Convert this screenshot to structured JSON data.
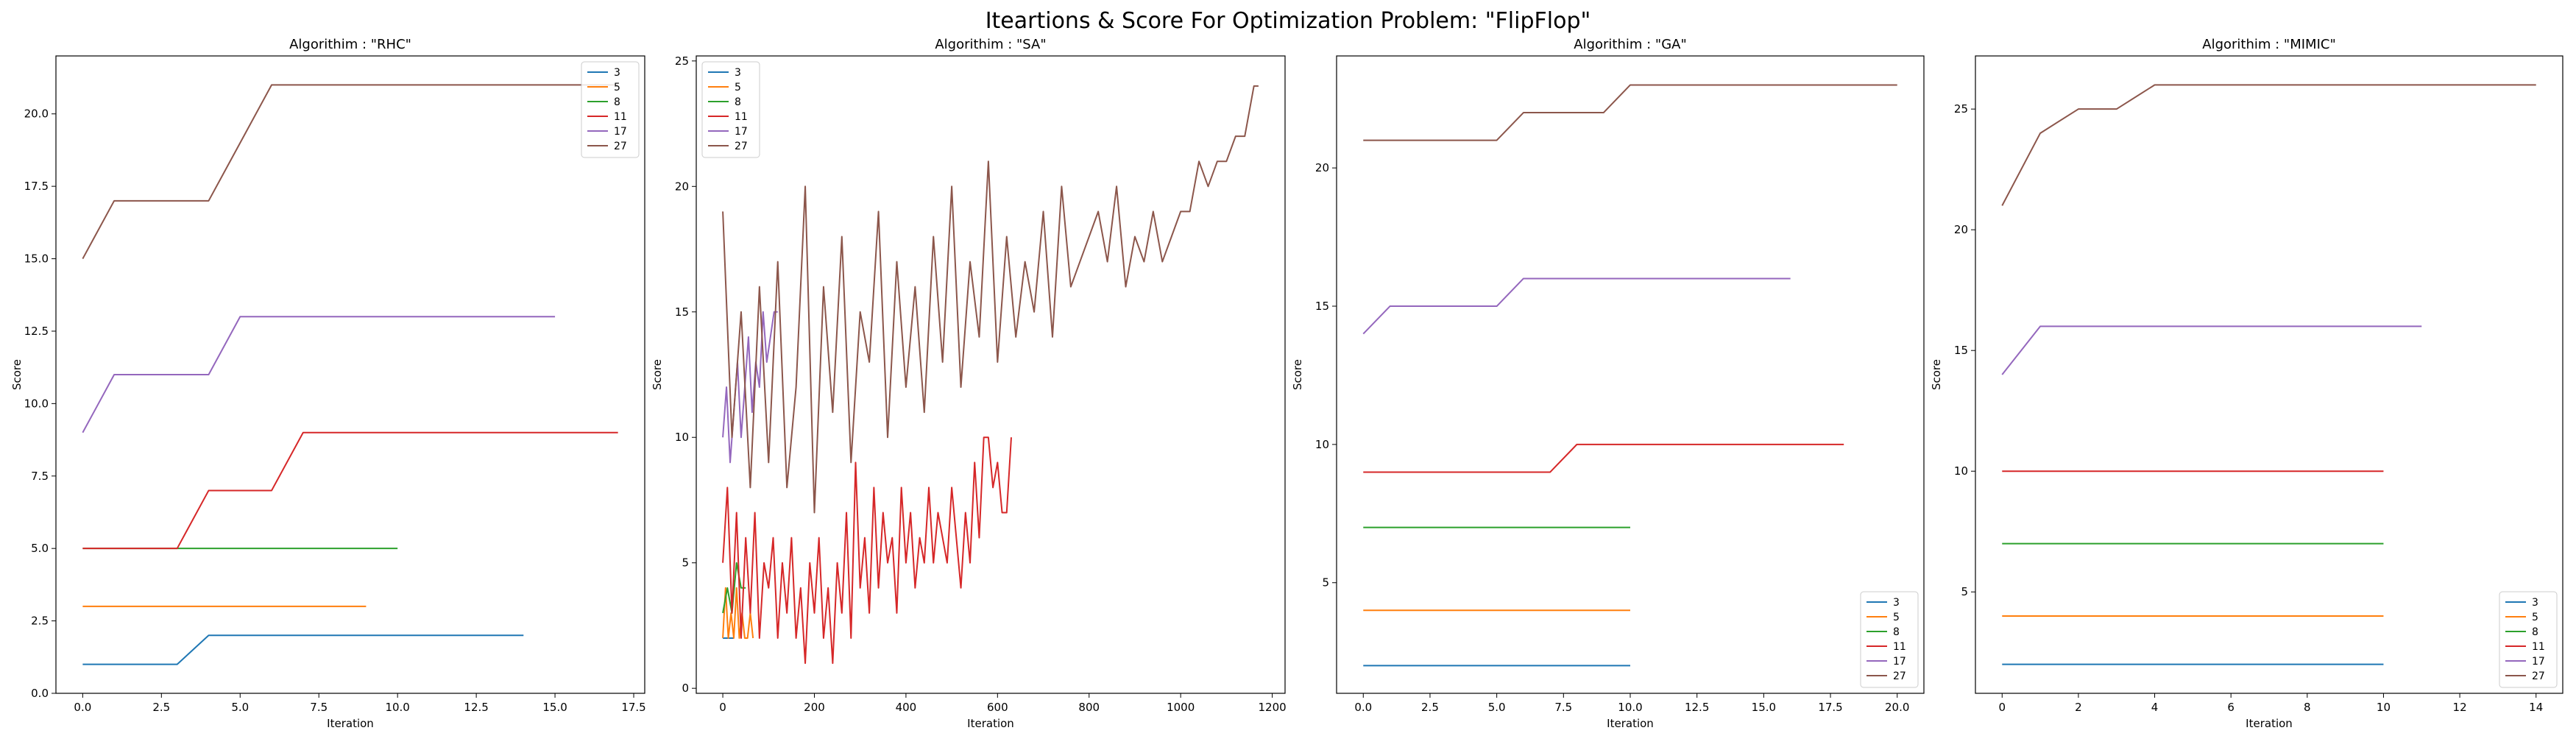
{
  "figure": {
    "title": "Iteartions & Score For Optimization Problem: \"FlipFlop\""
  },
  "colors": {
    "3": "#1f77b4",
    "5": "#ff7f0e",
    "8": "#2ca02c",
    "11": "#d62728",
    "17": "#9467bd",
    "27": "#8c564b"
  },
  "chart_data": [
    {
      "type": "line",
      "title": "Algorithim : \"RHC\"",
      "xlabel": "Iteration",
      "ylabel": "Score",
      "xlim": [
        -0.85,
        17.85
      ],
      "ylim": [
        0,
        22
      ],
      "xticks": [
        0.0,
        2.5,
        5.0,
        7.5,
        10.0,
        12.5,
        15.0,
        17.5
      ],
      "xtick_labels": [
        "0.0",
        "2.5",
        "5.0",
        "7.5",
        "10.0",
        "12.5",
        "15.0",
        "17.5"
      ],
      "yticks": [
        0.0,
        2.5,
        5.0,
        7.5,
        10.0,
        12.5,
        15.0,
        17.5,
        20.0
      ],
      "ytick_labels": [
        "0.0",
        "2.5",
        "5.0",
        "7.5",
        "10.0",
        "12.5",
        "15.0",
        "17.5",
        "20.0"
      ],
      "legend": "top-right",
      "series": [
        {
          "name": "3",
          "color": "#1f77b4",
          "x": [
            0,
            1,
            2,
            3,
            4,
            5,
            6,
            7,
            8,
            9,
            10,
            11,
            12,
            13,
            14
          ],
          "y": [
            1,
            1,
            1,
            1,
            2,
            2,
            2,
            2,
            2,
            2,
            2,
            2,
            2,
            2,
            2
          ]
        },
        {
          "name": "5",
          "color": "#ff7f0e",
          "x": [
            0,
            1,
            2,
            3,
            4,
            5,
            6,
            7,
            8,
            9
          ],
          "y": [
            3,
            3,
            3,
            3,
            3,
            3,
            3,
            3,
            3,
            3
          ]
        },
        {
          "name": "8",
          "color": "#2ca02c",
          "x": [
            0,
            1,
            2,
            3,
            4,
            5,
            6,
            7,
            8,
            9,
            10
          ],
          "y": [
            5,
            5,
            5,
            5,
            5,
            5,
            5,
            5,
            5,
            5,
            5
          ]
        },
        {
          "name": "11",
          "color": "#d62728",
          "x": [
            0,
            1,
            2,
            3,
            4,
            5,
            6,
            7,
            8,
            9,
            10,
            11,
            12,
            13,
            14,
            15,
            16,
            17
          ],
          "y": [
            5,
            5,
            5,
            5,
            7,
            7,
            7,
            9,
            9,
            9,
            9,
            9,
            9,
            9,
            9,
            9,
            9,
            9
          ]
        },
        {
          "name": "17",
          "color": "#9467bd",
          "x": [
            0,
            1,
            2,
            3,
            4,
            5,
            6,
            7,
            8,
            9,
            10,
            11,
            12,
            13,
            14,
            15
          ],
          "y": [
            9,
            11,
            11,
            11,
            11,
            13,
            13,
            13,
            13,
            13,
            13,
            13,
            13,
            13,
            13,
            13
          ]
        },
        {
          "name": "27",
          "color": "#8c564b",
          "x": [
            0,
            1,
            2,
            3,
            4,
            5,
            6,
            7,
            8,
            9,
            10,
            11,
            12,
            13,
            14,
            15,
            16,
            17
          ],
          "y": [
            15,
            17,
            17,
            17,
            17,
            19,
            21,
            21,
            21,
            21,
            21,
            21,
            21,
            21,
            21,
            21,
            21,
            21
          ]
        }
      ]
    },
    {
      "type": "line",
      "title": "Algorithim : \"SA\"",
      "xlabel": "Iteration",
      "ylabel": "Score",
      "xlim": [
        -58,
        1228
      ],
      "ylim": [
        -0.2,
        25.2
      ],
      "xticks": [
        0,
        200,
        400,
        600,
        800,
        1000,
        1200
      ],
      "xtick_labels": [
        "0",
        "200",
        "400",
        "600",
        "800",
        "1000",
        "1200"
      ],
      "yticks": [
        0,
        5,
        10,
        15,
        20,
        25
      ],
      "ytick_labels": [
        "0",
        "5",
        "10",
        "15",
        "20",
        "25"
      ],
      "legend": "top-left",
      "series": [
        {
          "name": "3",
          "color": "#1f77b4",
          "x": [
            0,
            4,
            8,
            12,
            16,
            20,
            24
          ],
          "y": [
            2,
            2,
            2,
            2,
            2,
            2,
            2
          ]
        },
        {
          "name": "5",
          "color": "#ff7f0e",
          "x": [
            0,
            6,
            12,
            18,
            24,
            30,
            36,
            42,
            48,
            54,
            60,
            66
          ],
          "y": [
            2,
            4,
            2,
            3,
            2,
            4,
            2,
            3,
            2,
            2,
            3,
            2
          ]
        },
        {
          "name": "8",
          "color": "#2ca02c",
          "x": [
            0,
            10,
            20,
            30,
            40,
            50
          ],
          "y": [
            3,
            4,
            3,
            5,
            4,
            4
          ]
        },
        {
          "name": "11",
          "color": "#d62728",
          "x": [
            0,
            10,
            20,
            30,
            40,
            50,
            60,
            70,
            80,
            90,
            100,
            110,
            120,
            130,
            140,
            150,
            160,
            170,
            180,
            190,
            200,
            210,
            220,
            230,
            240,
            250,
            260,
            270,
            280,
            290,
            300,
            310,
            320,
            330,
            340,
            350,
            360,
            370,
            380,
            390,
            400,
            410,
            420,
            430,
            440,
            450,
            460,
            470,
            480,
            490,
            500,
            510,
            520,
            530,
            540,
            550,
            560,
            570,
            580,
            590,
            600,
            610,
            620,
            630
          ],
          "y": [
            5,
            8,
            3,
            7,
            2,
            6,
            3,
            7,
            2,
            5,
            4,
            6,
            2,
            5,
            3,
            6,
            2,
            4,
            1,
            5,
            3,
            6,
            2,
            4,
            1,
            5,
            3,
            7,
            2,
            9,
            4,
            6,
            3,
            8,
            4,
            7,
            5,
            6,
            3,
            8,
            5,
            7,
            4,
            6,
            5,
            8,
            5,
            7,
            6,
            5,
            8,
            6,
            4,
            7,
            5,
            9,
            6,
            10,
            10,
            8,
            9,
            7,
            7,
            10
          ]
        },
        {
          "name": "17",
          "color": "#9467bd",
          "x": [
            0,
            8,
            16,
            24,
            32,
            40,
            48,
            56,
            64,
            72,
            80,
            88,
            96,
            104,
            112,
            120
          ],
          "y": [
            10,
            12,
            9,
            11,
            13,
            10,
            12,
            14,
            11,
            13,
            12,
            15,
            13,
            14,
            15,
            15
          ]
        },
        {
          "name": "27",
          "color": "#8c564b",
          "x": [
            0,
            20,
            40,
            60,
            80,
            100,
            120,
            140,
            160,
            180,
            200,
            220,
            240,
            260,
            280,
            300,
            320,
            340,
            360,
            380,
            400,
            420,
            440,
            460,
            480,
            500,
            520,
            540,
            560,
            580,
            600,
            620,
            640,
            660,
            680,
            700,
            720,
            740,
            760,
            780,
            800,
            820,
            840,
            860,
            880,
            900,
            920,
            940,
            960,
            980,
            1000,
            1020,
            1040,
            1060,
            1080,
            1100,
            1120,
            1140,
            1160,
            1170
          ],
          "y": [
            19,
            10,
            15,
            8,
            16,
            9,
            17,
            8,
            12,
            20,
            7,
            16,
            11,
            18,
            9,
            15,
            13,
            19,
            10,
            17,
            12,
            16,
            11,
            18,
            13,
            20,
            12,
            17,
            14,
            21,
            13,
            18,
            14,
            17,
            15,
            19,
            14,
            20,
            16,
            17,
            18,
            19,
            17,
            20,
            16,
            18,
            17,
            19,
            17,
            18,
            19,
            19,
            21,
            20,
            21,
            21,
            22,
            22,
            24,
            24
          ]
        }
      ]
    },
    {
      "type": "line",
      "title": "Algorithim : \"GA\"",
      "xlabel": "Iteration",
      "ylabel": "Score",
      "xlim": [
        -1.0,
        21.0
      ],
      "ylim": [
        1.0,
        24.05
      ],
      "xticks": [
        0.0,
        2.5,
        5.0,
        7.5,
        10.0,
        12.5,
        15.0,
        17.5,
        20.0
      ],
      "xtick_labels": [
        "0.0",
        "2.5",
        "5.0",
        "7.5",
        "10.0",
        "12.5",
        "15.0",
        "17.5",
        "20.0"
      ],
      "yticks": [
        5,
        10,
        15,
        20
      ],
      "ytick_labels": [
        "5",
        "10",
        "15",
        "20"
      ],
      "legend": "bottom-right",
      "series": [
        {
          "name": "3",
          "color": "#1f77b4",
          "x": [
            0,
            1,
            2,
            3,
            4,
            5,
            6,
            7,
            8,
            9,
            10
          ],
          "y": [
            2,
            2,
            2,
            2,
            2,
            2,
            2,
            2,
            2,
            2,
            2
          ]
        },
        {
          "name": "5",
          "color": "#ff7f0e",
          "x": [
            0,
            1,
            2,
            3,
            4,
            5,
            6,
            7,
            8,
            9,
            10
          ],
          "y": [
            4,
            4,
            4,
            4,
            4,
            4,
            4,
            4,
            4,
            4,
            4
          ]
        },
        {
          "name": "8",
          "color": "#2ca02c",
          "x": [
            0,
            1,
            2,
            3,
            4,
            5,
            6,
            7,
            8,
            9,
            10
          ],
          "y": [
            7,
            7,
            7,
            7,
            7,
            7,
            7,
            7,
            7,
            7,
            7
          ]
        },
        {
          "name": "11",
          "color": "#d62728",
          "x": [
            0,
            1,
            2,
            3,
            4,
            5,
            6,
            7,
            8,
            9,
            10,
            11,
            12,
            13,
            14,
            15,
            16,
            17,
            18
          ],
          "y": [
            9,
            9,
            9,
            9,
            9,
            9,
            9,
            9,
            10,
            10,
            10,
            10,
            10,
            10,
            10,
            10,
            10,
            10,
            10
          ]
        },
        {
          "name": "17",
          "color": "#9467bd",
          "x": [
            0,
            1,
            2,
            3,
            4,
            5,
            6,
            7,
            8,
            9,
            10,
            11,
            12,
            13,
            14,
            15,
            16
          ],
          "y": [
            14,
            15,
            15,
            15,
            15,
            15,
            16,
            16,
            16,
            16,
            16,
            16,
            16,
            16,
            16,
            16,
            16
          ]
        },
        {
          "name": "27",
          "color": "#8c564b",
          "x": [
            0,
            1,
            2,
            3,
            4,
            5,
            6,
            7,
            8,
            9,
            10,
            11,
            12,
            13,
            14,
            15,
            16,
            17,
            18,
            19,
            20
          ],
          "y": [
            21,
            21,
            21,
            21,
            21,
            21,
            22,
            22,
            22,
            22,
            23,
            23,
            23,
            23,
            23,
            23,
            23,
            23,
            23,
            23,
            23
          ]
        }
      ]
    },
    {
      "type": "line",
      "title": "Algorithim : \"MIMIC\"",
      "xlabel": "Iteration",
      "ylabel": "Score",
      "xlim": [
        -0.7,
        14.7
      ],
      "ylim": [
        0.8,
        27.2
      ],
      "xticks": [
        0,
        2,
        4,
        6,
        8,
        10,
        12,
        14
      ],
      "xtick_labels": [
        "0",
        "2",
        "4",
        "6",
        "8",
        "10",
        "12",
        "14"
      ],
      "yticks": [
        5,
        10,
        15,
        20,
        25
      ],
      "ytick_labels": [
        "5",
        "10",
        "15",
        "20",
        "25"
      ],
      "legend": "bottom-right",
      "series": [
        {
          "name": "3",
          "color": "#1f77b4",
          "x": [
            0,
            1,
            2,
            3,
            4,
            5,
            6,
            7,
            8,
            9,
            10
          ],
          "y": [
            2,
            2,
            2,
            2,
            2,
            2,
            2,
            2,
            2,
            2,
            2
          ]
        },
        {
          "name": "5",
          "color": "#ff7f0e",
          "x": [
            0,
            1,
            2,
            3,
            4,
            5,
            6,
            7,
            8,
            9,
            10
          ],
          "y": [
            4,
            4,
            4,
            4,
            4,
            4,
            4,
            4,
            4,
            4,
            4
          ]
        },
        {
          "name": "8",
          "color": "#2ca02c",
          "x": [
            0,
            1,
            2,
            3,
            4,
            5,
            6,
            7,
            8,
            9,
            10
          ],
          "y": [
            7,
            7,
            7,
            7,
            7,
            7,
            7,
            7,
            7,
            7,
            7
          ]
        },
        {
          "name": "11",
          "color": "#d62728",
          "x": [
            0,
            1,
            2,
            3,
            4,
            5,
            6,
            7,
            8,
            9,
            10
          ],
          "y": [
            10,
            10,
            10,
            10,
            10,
            10,
            10,
            10,
            10,
            10,
            10
          ]
        },
        {
          "name": "17",
          "color": "#9467bd",
          "x": [
            0,
            1,
            2,
            3,
            4,
            5,
            6,
            7,
            8,
            9,
            10,
            11
          ],
          "y": [
            14,
            16,
            16,
            16,
            16,
            16,
            16,
            16,
            16,
            16,
            16,
            16
          ]
        },
        {
          "name": "27",
          "color": "#8c564b",
          "x": [
            0,
            1,
            2,
            3,
            4,
            5,
            6,
            7,
            8,
            9,
            10,
            11,
            12,
            13,
            14
          ],
          "y": [
            21,
            24,
            25,
            25,
            26,
            26,
            26,
            26,
            26,
            26,
            26,
            26,
            26,
            26,
            26
          ]
        }
      ]
    }
  ]
}
